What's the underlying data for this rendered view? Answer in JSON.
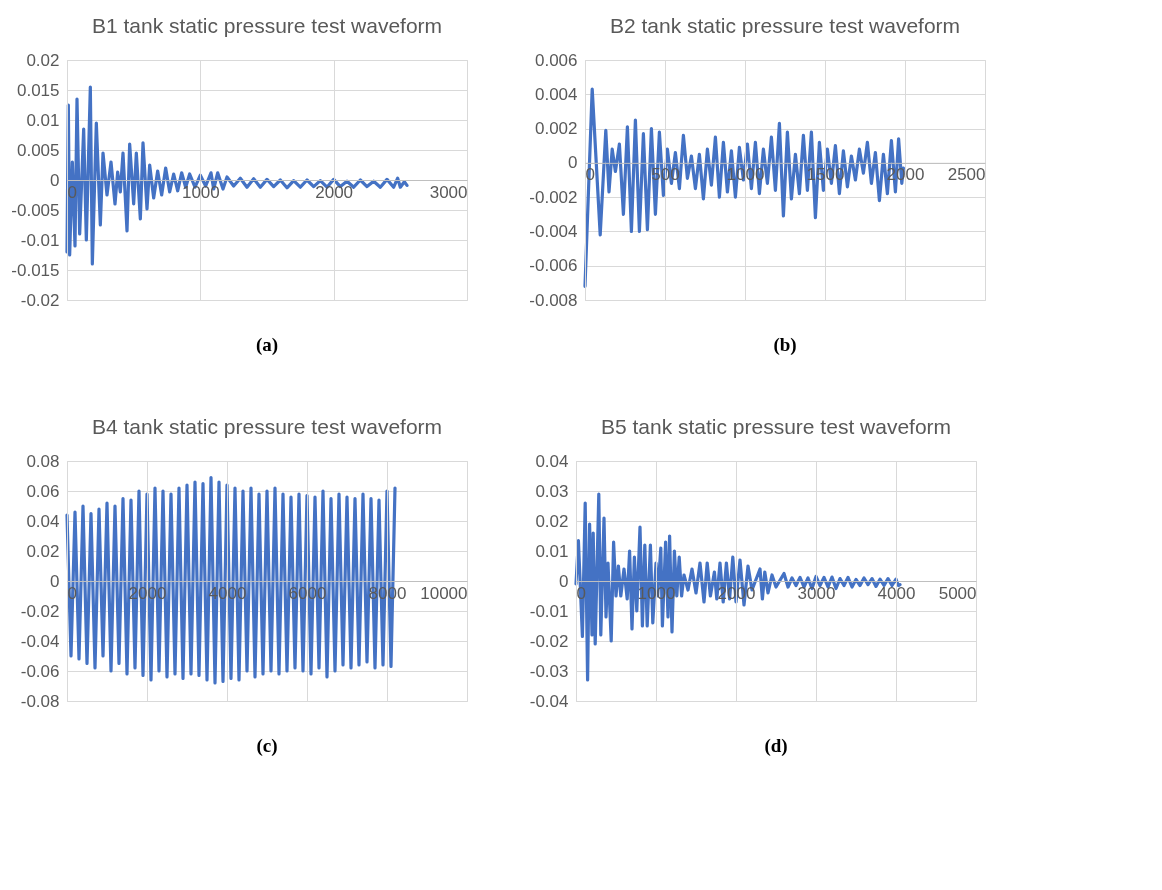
{
  "chart_data": [
    {
      "type": "line",
      "title": "B1 tank static pressure test waveform",
      "annotations": [
        "(a)"
      ],
      "color": "#4472c4",
      "line_style": "solid",
      "grid": true,
      "x": [
        0,
        10,
        20,
        40,
        60,
        75,
        95,
        125,
        145,
        175,
        190,
        220,
        250,
        270,
        300,
        330,
        360,
        380,
        400,
        420,
        450,
        470,
        500,
        520,
        550,
        570,
        600,
        620,
        650,
        680,
        710,
        740,
        770,
        800,
        830,
        860,
        890,
        920,
        960,
        1000,
        1040,
        1080,
        1100,
        1130,
        1170,
        1200,
        1250,
        1300,
        1350,
        1400,
        1450,
        1500,
        1550,
        1600,
        1650,
        1700,
        1750,
        1800,
        1850,
        1900,
        1950,
        2000,
        2050,
        2100,
        2150,
        2200,
        2250,
        2300,
        2350,
        2400,
        2450,
        2480,
        2500,
        2530,
        2550
      ],
      "values": [
        -0.012,
        0.0125,
        -0.0125,
        0.003,
        -0.011,
        0.0135,
        -0.009,
        0.0085,
        -0.01,
        0.0155,
        -0.014,
        0.0095,
        -0.0075,
        0.0045,
        -0.0025,
        0.003,
        -0.004,
        0.0013,
        -0.002,
        0.0045,
        -0.0085,
        0.006,
        -0.004,
        0.0045,
        -0.0065,
        0.0062,
        -0.0048,
        0.0025,
        -0.003,
        0.0015,
        -0.0025,
        0.002,
        -0.002,
        0.001,
        -0.0018,
        0.0012,
        -0.0012,
        0.001,
        -0.0012,
        0.0008,
        -0.001,
        0.0012,
        -0.0015,
        0.0012,
        -0.0015,
        0.0005,
        -0.001,
        0.0003,
        -0.0012,
        0.0002,
        -0.0012,
        0.0001,
        -0.0011,
        0,
        -0.0013,
        -0.0001,
        -0.0012,
        0,
        -0.0011,
        -0.0001,
        -0.0012,
        0.0001,
        -0.0011,
        -0.0002,
        -0.0012,
        0,
        -0.0011,
        -0.0002,
        -0.0012,
        0.0001,
        -0.0012,
        0.0003,
        -0.0012,
        -0.0003,
        -0.0009
      ],
      "xlim": [
        0,
        3000
      ],
      "xticks": [
        0,
        1000,
        2000,
        3000
      ],
      "ylim": [
        -0.02,
        0.02
      ],
      "yticks": [
        -0.02,
        -0.015,
        -0.01,
        -0.005,
        0,
        0.005,
        0.01,
        0.015,
        0.02
      ]
    },
    {
      "type": "line",
      "title": "B2 tank static pressure test waveform",
      "annotations": [
        "(b)"
      ],
      "color": "#4472c4",
      "line_style": "solid",
      "grid": true,
      "x": [
        0,
        45,
        95,
        130,
        150,
        170,
        190,
        215,
        240,
        265,
        290,
        315,
        340,
        365,
        390,
        415,
        440,
        465,
        490,
        515,
        540,
        565,
        590,
        615,
        640,
        665,
        690,
        715,
        740,
        765,
        790,
        815,
        840,
        865,
        890,
        915,
        940,
        965,
        990,
        1015,
        1040,
        1065,
        1090,
        1115,
        1140,
        1165,
        1190,
        1215,
        1240,
        1265,
        1290,
        1315,
        1340,
        1365,
        1390,
        1415,
        1440,
        1465,
        1490,
        1515,
        1540,
        1565,
        1590,
        1615,
        1640,
        1665,
        1690,
        1715,
        1740,
        1765,
        1790,
        1815,
        1840,
        1865,
        1890,
        1915,
        1940,
        1960,
        1980,
        1990
      ],
      "values": [
        -0.0072,
        0.0043,
        -0.0042,
        0.0019,
        -0.0017,
        0.0008,
        -0.0005,
        0.0011,
        -0.003,
        0.0021,
        -0.004,
        0.0025,
        -0.004,
        0.0017,
        -0.0039,
        0.002,
        -0.003,
        0.0018,
        -0.0019,
        0.0008,
        -0.0012,
        0.0006,
        -0.0015,
        0.0016,
        -0.0009,
        0.0004,
        -0.0015,
        0.0005,
        -0.0021,
        0.0008,
        -0.0013,
        0.0015,
        -0.002,
        0.0012,
        -0.0017,
        0.0007,
        -0.002,
        0.0009,
        -0.001,
        0.0011,
        -0.0015,
        0.0012,
        -0.0018,
        0.0008,
        -0.0012,
        0.0015,
        -0.0016,
        0.0023,
        -0.0031,
        0.0018,
        -0.0021,
        0.0005,
        -0.0018,
        0.0016,
        -0.0016,
        0.0018,
        -0.0032,
        0.0012,
        -0.0016,
        0.0008,
        -0.0012,
        0.001,
        -0.0018,
        0.0007,
        -0.0014,
        0.0004,
        -0.001,
        0.0008,
        -0.0006,
        0.0012,
        -0.0012,
        0.0006,
        -0.0022,
        0.0005,
        -0.0018,
        0.0013,
        -0.0017,
        0.0014,
        -0.0012,
        -0.0003
      ],
      "xlim": [
        0,
        2500
      ],
      "xticks": [
        0,
        500,
        1000,
        1500,
        2000,
        2500
      ],
      "ylim": [
        -0.008,
        0.006
      ],
      "yticks": [
        -0.008,
        -0.006,
        -0.004,
        -0.002,
        0,
        0.002,
        0.004,
        0.006
      ]
    },
    {
      "type": "line",
      "title": "B4 tank static pressure test waveform",
      "annotations": [
        "(c)"
      ],
      "color": "#4472c4",
      "line_style": "solid",
      "grid": true,
      "x": [
        0,
        100,
        200,
        300,
        400,
        500,
        600,
        700,
        800,
        900,
        1000,
        1100,
        1200,
        1300,
        1400,
        1500,
        1600,
        1700,
        1800,
        1900,
        2000,
        2100,
        2200,
        2300,
        2400,
        2500,
        2600,
        2700,
        2800,
        2900,
        3000,
        3100,
        3200,
        3300,
        3400,
        3500,
        3600,
        3700,
        3800,
        3900,
        4000,
        4100,
        4200,
        4300,
        4400,
        4500,
        4600,
        4700,
        4800,
        4900,
        5000,
        5100,
        5200,
        5300,
        5400,
        5500,
        5600,
        5700,
        5800,
        5900,
        6000,
        6100,
        6200,
        6300,
        6400,
        6500,
        6600,
        6700,
        6800,
        6900,
        7000,
        7100,
        7200,
        7300,
        7400,
        7500,
        7600,
        7700,
        7800,
        7900,
        8000,
        8100,
        8200
      ],
      "values": [
        0.044,
        -0.05,
        0.046,
        -0.052,
        0.05,
        -0.055,
        0.045,
        -0.058,
        0.048,
        -0.05,
        0.052,
        -0.06,
        0.05,
        -0.055,
        0.055,
        -0.062,
        0.054,
        -0.058,
        0.06,
        -0.063,
        0.058,
        -0.066,
        0.062,
        -0.06,
        0.06,
        -0.064,
        0.058,
        -0.062,
        0.062,
        -0.065,
        0.064,
        -0.062,
        0.066,
        -0.063,
        0.065,
        -0.066,
        0.069,
        -0.068,
        0.066,
        -0.067,
        0.064,
        -0.065,
        0.062,
        -0.066,
        0.06,
        -0.06,
        0.062,
        -0.064,
        0.058,
        -0.062,
        0.06,
        -0.06,
        0.062,
        -0.062,
        0.058,
        -0.06,
        0.056,
        -0.058,
        0.058,
        -0.06,
        0.057,
        -0.062,
        0.056,
        -0.058,
        0.06,
        -0.064,
        0.055,
        -0.06,
        0.058,
        -0.056,
        0.056,
        -0.058,
        0.055,
        -0.056,
        0.058,
        -0.054,
        0.055,
        -0.058,
        0.054,
        -0.056,
        0.06,
        -0.057,
        0.062
      ],
      "xlim": [
        0,
        10000
      ],
      "xticks": [
        0,
        2000,
        4000,
        6000,
        8000,
        10000
      ],
      "ylim": [
        -0.08,
        0.08
      ],
      "yticks": [
        -0.08,
        -0.06,
        -0.04,
        -0.02,
        0,
        0.02,
        0.04,
        0.06,
        0.08
      ]
    },
    {
      "type": "line",
      "title": "B5 tank static pressure test waveform",
      "annotations": [
        "(d)"
      ],
      "color": "#4472c4",
      "line_style": "solid",
      "grid": true,
      "x": [
        0,
        30,
        80,
        115,
        145,
        170,
        200,
        215,
        240,
        285,
        310,
        350,
        375,
        400,
        440,
        470,
        500,
        530,
        560,
        600,
        640,
        670,
        700,
        730,
        760,
        800,
        830,
        860,
        890,
        930,
        960,
        1000,
        1020,
        1060,
        1080,
        1120,
        1150,
        1170,
        1200,
        1230,
        1260,
        1290,
        1320,
        1350,
        1400,
        1450,
        1500,
        1550,
        1600,
        1640,
        1680,
        1730,
        1760,
        1800,
        1840,
        1880,
        1920,
        1960,
        2000,
        2050,
        2100,
        2150,
        2200,
        2250,
        2300,
        2330,
        2360,
        2400,
        2450,
        2500,
        2600,
        2650,
        2700,
        2750,
        2800,
        2850,
        2900,
        2950,
        3000,
        3050,
        3100,
        3150,
        3200,
        3250,
        3300,
        3350,
        3400,
        3450,
        3500,
        3550,
        3600,
        3650,
        3700,
        3750,
        3800,
        3850,
        3900,
        3950,
        4000,
        4030,
        4050
      ],
      "values": [
        -0.001,
        0.0135,
        -0.0185,
        0.026,
        -0.033,
        0.019,
        -0.018,
        0.016,
        -0.021,
        0.029,
        -0.018,
        0.021,
        -0.012,
        0.006,
        -0.02,
        0.013,
        -0.005,
        0.005,
        -0.005,
        0.004,
        -0.006,
        0.01,
        -0.016,
        0.008,
        -0.01,
        0.018,
        -0.015,
        0.012,
        -0.015,
        0.012,
        -0.014,
        0.006,
        -0.005,
        0.011,
        -0.015,
        0.013,
        -0.012,
        0.015,
        -0.017,
        0.01,
        -0.005,
        0.008,
        -0.005,
        0.002,
        -0.003,
        0.004,
        -0.004,
        0.006,
        -0.007,
        0.006,
        -0.005,
        0.003,
        -0.006,
        0.006,
        -0.007,
        0.006,
        -0.006,
        0.008,
        -0.007,
        0.007,
        -0.008,
        0.005,
        -0.003,
        0.0005,
        0.004,
        -0.006,
        0.003,
        -0.004,
        0.002,
        -0.002,
        0.0025,
        -0.002,
        0.001,
        -0.0015,
        0.0012,
        -0.002,
        0.001,
        -0.0025,
        0.0015,
        -0.0015,
        0.0012,
        -0.002,
        0.0013,
        -0.0025,
        0.0008,
        -0.0015,
        0.0012,
        -0.002,
        0.0005,
        -0.0015,
        0.001,
        -0.0012,
        0.0008,
        -0.0018,
        0.0006,
        -0.0015,
        0.0008,
        -0.0015,
        0.0006,
        -0.0015,
        -0.0012
      ],
      "xlim": [
        0,
        5000
      ],
      "xticks": [
        0,
        1000,
        2000,
        3000,
        4000,
        5000
      ],
      "ylim": [
        -0.04,
        0.04
      ],
      "yticks": [
        -0.04,
        -0.03,
        -0.02,
        -0.01,
        0,
        0.01,
        0.02,
        0.03,
        0.04
      ]
    }
  ]
}
